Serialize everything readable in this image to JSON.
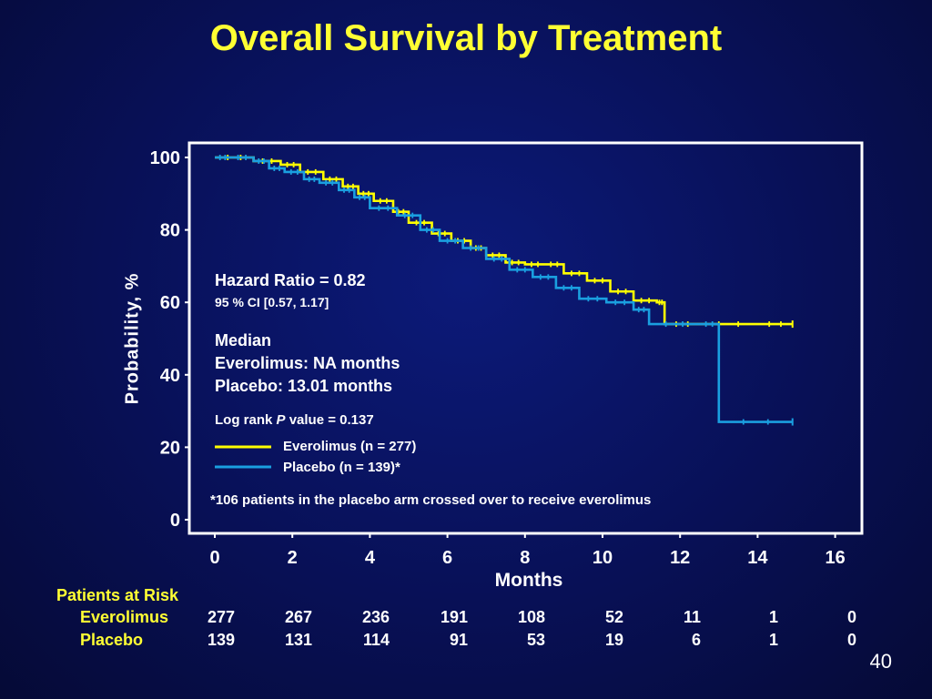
{
  "slide": {
    "title": "Overall Survival by Treatment",
    "page_number": "40"
  },
  "chart_data": {
    "type": "line",
    "subtype": "kaplan-meier",
    "xlabel": "Months",
    "ylabel": "Probability, %",
    "xlim": [
      0,
      16
    ],
    "ylim": [
      0,
      100
    ],
    "xticks": [
      "0",
      "2",
      "4",
      "6",
      "8",
      "10",
      "12",
      "14",
      "16"
    ],
    "yticks": [
      "0",
      "20",
      "40",
      "60",
      "80",
      "100"
    ],
    "series": [
      {
        "name": "Everolimus  (n = 277)",
        "color": "#ffff00",
        "x": [
          0,
          1.0,
          1.7,
          2.2,
          2.8,
          3.3,
          3.7,
          4.1,
          4.6,
          5.0,
          5.6,
          6.1,
          6.6,
          7.0,
          7.5,
          8.0,
          8.5,
          9.0,
          9.6,
          10.2,
          10.8,
          11.4,
          11.6,
          12.5,
          14.0,
          14.9
        ],
        "y": [
          100,
          99,
          98,
          96,
          94,
          92,
          90,
          88,
          85,
          82,
          79,
          77,
          75,
          73,
          71,
          70.5,
          70.5,
          68,
          66,
          63,
          60.5,
          60,
          54,
          54,
          54,
          54
        ]
      },
      {
        "name": "Placebo  (n = 139)*",
        "color": "#1a9fe0",
        "x": [
          0,
          0.4,
          1.0,
          1.4,
          1.8,
          2.3,
          2.7,
          3.2,
          3.6,
          4.0,
          4.7,
          5.3,
          5.8,
          6.4,
          7.0,
          7.6,
          8.2,
          8.8,
          9.4,
          10.1,
          10.8,
          11.2,
          12.5,
          13.0,
          14.9
        ],
        "y": [
          100,
          100,
          99,
          97,
          96,
          94,
          93,
          91,
          89,
          86,
          84,
          80,
          77,
          75,
          72,
          69,
          67,
          64,
          61,
          60,
          58,
          54,
          54,
          27,
          27
        ]
      }
    ],
    "legend_position": "inside-left",
    "annotations": {
      "hr": "Hazard Ratio = 0.82",
      "ci": "95 % CI [0.57, 1.17]",
      "median_title": "Median",
      "median_everolimus": "Everolimus: NA months",
      "median_placebo": "Placebo: 13.01 months",
      "logrank_pre": "Log rank ",
      "logrank_p": "P",
      "logrank_post": " value = 0.137",
      "footnote": "*106 patients in the placebo arm crossed over to receive everolimus"
    }
  },
  "patients_at_risk": {
    "title": "Patients at Risk",
    "rows": [
      {
        "label": "Everolimus",
        "values": [
          "277",
          "267",
          "236",
          "191",
          "108",
          "52",
          "11",
          "1",
          "0"
        ]
      },
      {
        "label": "Placebo",
        "values": [
          "139",
          "131",
          "114",
          "91",
          "53",
          "19",
          "6",
          "1",
          "0"
        ]
      }
    ]
  }
}
